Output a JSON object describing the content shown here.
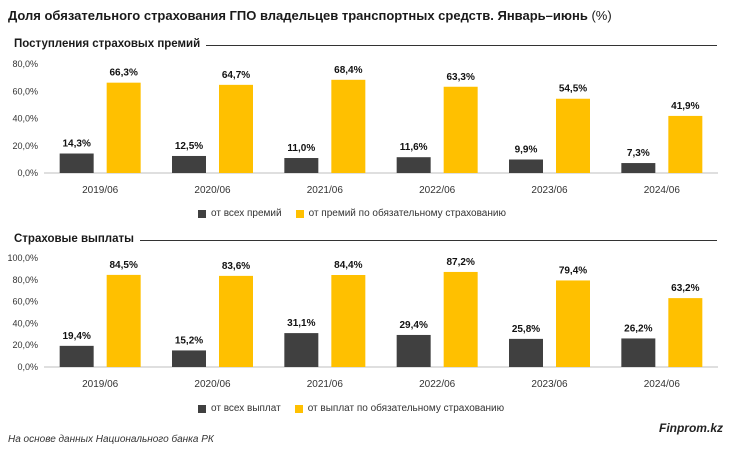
{
  "title_main": "Доля обязательного страхования ГПО владельцев транспортных средств. Январь–июнь",
  "title_unit": "(%)",
  "footer": "На основе данных Национального банка РК",
  "brand": "Finprom.kz",
  "colors": {
    "dark": "#404040",
    "accent": "#FFC000"
  },
  "chart_data": [
    {
      "type": "bar",
      "title": "Поступления страховых премий",
      "categories": [
        "2019/06",
        "2020/06",
        "2021/06",
        "2022/06",
        "2023/06",
        "2024/06"
      ],
      "series": [
        {
          "name": "от всех премий",
          "values": [
            14.3,
            12.5,
            11.0,
            11.6,
            9.9,
            7.3
          ],
          "labels": [
            "14,3%",
            "12,5%",
            "11,0%",
            "11,6%",
            "9,9%",
            "7,3%"
          ]
        },
        {
          "name": "от премий по обязательному страхованию",
          "values": [
            66.3,
            64.7,
            68.4,
            63.3,
            54.5,
            41.9
          ],
          "labels": [
            "66,3%",
            "64,7%",
            "68,4%",
            "63,3%",
            "54,5%",
            "41,9%"
          ]
        }
      ],
      "ylim": [
        0,
        80
      ],
      "yticks": [
        "0,0%",
        "20,0%",
        "40,0%",
        "60,0%",
        "80,0%"
      ],
      "legend_position": "bottom"
    },
    {
      "type": "bar",
      "title": "Страховые выплаты",
      "categories": [
        "2019/06",
        "2020/06",
        "2021/06",
        "2022/06",
        "2023/06",
        "2024/06"
      ],
      "series": [
        {
          "name": "от всех выплат",
          "values": [
            19.4,
            15.2,
            31.1,
            29.4,
            25.8,
            26.2
          ],
          "labels": [
            "19,4%",
            "15,2%",
            "31,1%",
            "29,4%",
            "25,8%",
            "26,2%"
          ]
        },
        {
          "name": "от выплат по обязательному страхованию",
          "values": [
            84.5,
            83.6,
            84.4,
            87.2,
            79.4,
            63.2
          ],
          "labels": [
            "84,5%",
            "83,6%",
            "84,4%",
            "87,2%",
            "79,4%",
            "63,2%"
          ]
        }
      ],
      "ylim": [
        0,
        100
      ],
      "yticks": [
        "0,0%",
        "20,0%",
        "40,0%",
        "60,0%",
        "80,0%",
        "100,0%"
      ],
      "legend_position": "bottom"
    }
  ]
}
